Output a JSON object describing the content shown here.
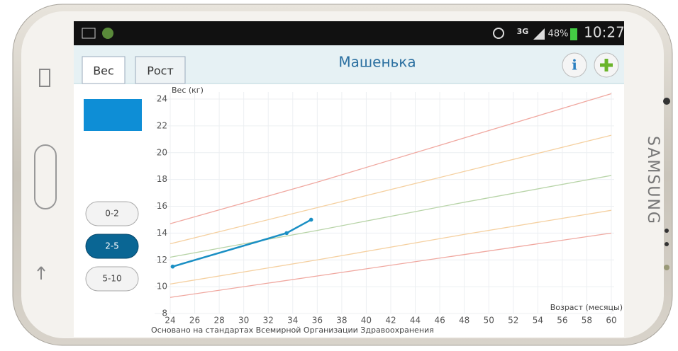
{
  "device": {
    "brand": "SAMSUNG"
  },
  "status_bar": {
    "network": "3G",
    "battery": "48%",
    "time": "10:27"
  },
  "header": {
    "title": "Машенька"
  },
  "tabs": [
    {
      "label": "Вес",
      "active": true
    },
    {
      "label": "Рост",
      "active": false
    }
  ],
  "ranges": [
    {
      "label": "0-2",
      "active": false
    },
    {
      "label": "2-5",
      "active": true
    },
    {
      "label": "5-10",
      "active": false
    }
  ],
  "chart_data": {
    "type": "line",
    "ylabel": "Вес (кг)",
    "xlabel": "Возраст (месяцы)",
    "xlim": [
      24,
      60
    ],
    "xticks": [
      24,
      26,
      28,
      30,
      32,
      34,
      36,
      38,
      40,
      42,
      44,
      46,
      48,
      50,
      52,
      54,
      56,
      58,
      60
    ],
    "ylim": [
      8,
      24
    ],
    "yticks": [
      8,
      10,
      12,
      14,
      16,
      18,
      20,
      22,
      24
    ],
    "grid": true,
    "series": [
      {
        "color": "#f0a8a0",
        "x": [
          24,
          36,
          48,
          60
        ],
        "values": [
          14.7,
          17.8,
          21.1,
          24.4
        ]
      },
      {
        "color": "#f5d0a0",
        "x": [
          24,
          36,
          48,
          60
        ],
        "values": [
          13.2,
          15.9,
          18.6,
          21.3
        ]
      },
      {
        "color": "#b8d4a8",
        "x": [
          24,
          36,
          48,
          60
        ],
        "values": [
          12.2,
          14.2,
          16.3,
          18.3
        ]
      },
      {
        "color": "#f5d0a0",
        "x": [
          24,
          36,
          48,
          60
        ],
        "values": [
          10.2,
          12.0,
          13.9,
          15.7
        ]
      },
      {
        "color": "#f0a8a0",
        "x": [
          24,
          36,
          48,
          60
        ],
        "values": [
          9.2,
          10.8,
          12.4,
          14.0
        ]
      },
      {
        "color": "#1a8fc4",
        "markers": true,
        "x": [
          24.2,
          33.5,
          35.5
        ],
        "values": [
          11.5,
          14.0,
          15.0
        ]
      }
    ]
  },
  "footer": {
    "note": "Основано на стандартах Всемирной Организации Здравоохранения"
  }
}
